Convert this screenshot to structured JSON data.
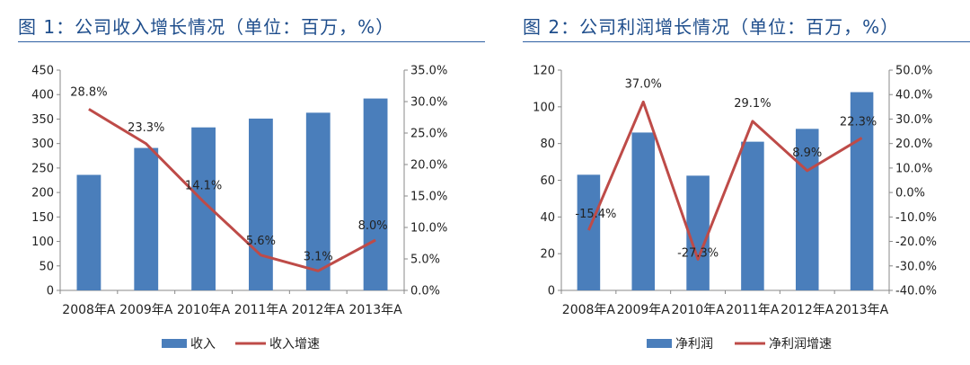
{
  "chart_data": [
    {
      "type": "bar",
      "title": "图 1：公司收入增长情况（单位：百万，%）",
      "categories": [
        "2008年A",
        "2009年A",
        "2010年A",
        "2011年A",
        "2012年A",
        "2013年A"
      ],
      "series": [
        {
          "name": "收入",
          "type": "bar",
          "axis": "left",
          "values": [
            236,
            291,
            333,
            351,
            363,
            392
          ]
        },
        {
          "name": "收入增速",
          "type": "line",
          "axis": "right",
          "values": [
            28.8,
            23.3,
            14.1,
            5.6,
            3.1,
            8.0
          ]
        }
      ],
      "data_labels": [
        "28.8%",
        "23.3%",
        "14.1%",
        "5.6%",
        "3.1%",
        "8.0%"
      ],
      "ylim_left": [
        0,
        450
      ],
      "yticks_left": [
        "450",
        "400",
        "350",
        "300",
        "250",
        "200",
        "150",
        "100",
        "50",
        "0"
      ],
      "ylim_right": [
        0,
        35
      ],
      "yticks_right": [
        "35.0%",
        "30.0%",
        "25.0%",
        "20.0%",
        "15.0%",
        "10.0%",
        "5.0%",
        "0.0%"
      ],
      "grid": false,
      "legend": "bottom",
      "colors": {
        "bar": "#4a7ebb",
        "line": "#be4b48"
      }
    },
    {
      "type": "bar",
      "title": "图 2：公司利润增长情况（单位：百万，%）",
      "categories": [
        "2008年A",
        "2009年A",
        "2010年A",
        "2011年A",
        "2012年A",
        "2013年A"
      ],
      "series": [
        {
          "name": "净利润",
          "type": "bar",
          "axis": "left",
          "values": [
            63,
            86,
            62.5,
            81,
            88,
            108
          ]
        },
        {
          "name": "净利润增速",
          "type": "line",
          "axis": "right",
          "values": [
            -15.4,
            37.0,
            -27.3,
            29.1,
            8.9,
            22.3
          ]
        }
      ],
      "data_labels": [
        "-15.4%",
        "37.0%",
        "-27.3%",
        "29.1%",
        "8.9%",
        "22.3%"
      ],
      "ylim_left": [
        0,
        120
      ],
      "yticks_left": [
        "120",
        "100",
        "80",
        "60",
        "40",
        "20",
        "0"
      ],
      "ylim_right": [
        -40,
        50
      ],
      "yticks_right": [
        "50.0%",
        "40.0%",
        "30.0%",
        "20.0%",
        "10.0%",
        "0.0%",
        "-10.0%",
        "-20.0%",
        "-30.0%",
        "-40.0%"
      ],
      "grid": false,
      "legend": "bottom",
      "colors": {
        "bar": "#4a7ebb",
        "line": "#be4b48"
      }
    }
  ]
}
